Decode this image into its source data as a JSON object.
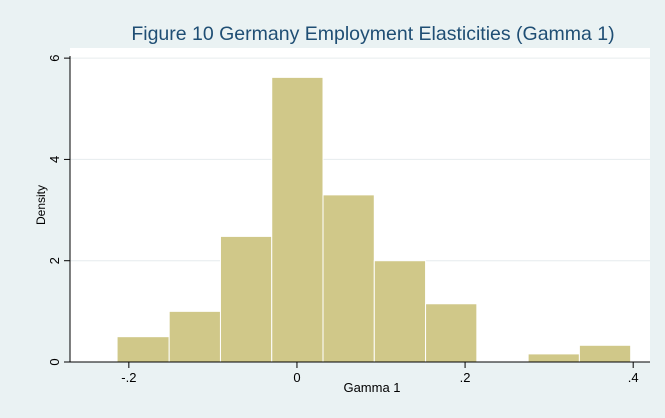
{
  "chart_data": {
    "type": "bar",
    "subtype": "histogram",
    "title": "Figure 10 Germany Employment Elasticities (Gamma 1)",
    "xlabel": "Gamma 1",
    "ylabel": "Density",
    "xlim": [
      -0.27,
      0.42
    ],
    "ylim": [
      0,
      6.2
    ],
    "x_ticks": [
      -0.2,
      0,
      0.2,
      0.4
    ],
    "x_tick_labels": [
      "-.2",
      "0",
      ".2",
      ".4"
    ],
    "y_ticks": [
      0,
      2,
      4,
      6
    ],
    "y_tick_labels": [
      "0",
      "2",
      "4",
      "6"
    ],
    "grid": "horizontal",
    "legend": "none",
    "bins": [
      {
        "x0": -0.214,
        "x1": -0.152,
        "density": 0.5
      },
      {
        "x0": -0.152,
        "x1": -0.091,
        "density": 1.0
      },
      {
        "x0": -0.091,
        "x1": -0.03,
        "density": 2.48
      },
      {
        "x0": -0.03,
        "x1": 0.031,
        "density": 5.62
      },
      {
        "x0": 0.031,
        "x1": 0.092,
        "density": 3.3
      },
      {
        "x0": 0.092,
        "x1": 0.153,
        "density": 2.0
      },
      {
        "x0": 0.153,
        "x1": 0.214,
        "density": 1.15
      },
      {
        "x0": 0.214,
        "x1": 0.275,
        "density": 0
      },
      {
        "x0": 0.275,
        "x1": 0.336,
        "density": 0.16
      },
      {
        "x0": 0.336,
        "x1": 0.397,
        "density": 0.33
      }
    ],
    "colors": {
      "background": "#eaf2f3",
      "plot_background": "#ffffff",
      "bar_fill": "#d0c889",
      "bar_stroke": "#ffffff",
      "grid": "#e6ecee",
      "title": "#1f4e74",
      "axis": "#000000"
    }
  }
}
